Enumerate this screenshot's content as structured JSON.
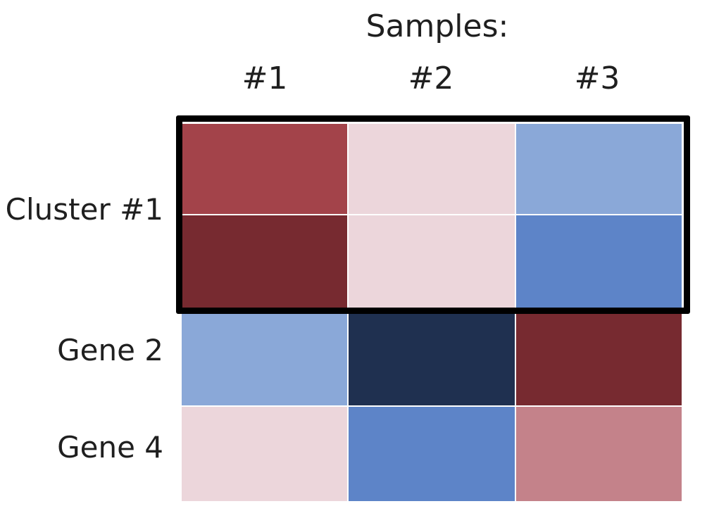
{
  "heatmap": {
    "title": "Samples:",
    "columns": [
      "#1",
      "#2",
      "#3"
    ],
    "row_labels": {
      "cluster": "Cluster #1",
      "gene2": "Gene 2",
      "gene4": "Gene 4"
    },
    "cells": [
      [
        "#a3434a",
        "#ecd6db",
        "#8aa8d8"
      ],
      [
        "#772a30",
        "#ecd6db",
        "#5d84c8"
      ],
      [
        "#8aa8d8",
        "#1f3050",
        "#772a30"
      ],
      [
        "#ecd6db",
        "#5d84c8",
        "#c4828a"
      ]
    ],
    "cluster_border_color": "#000000"
  }
}
